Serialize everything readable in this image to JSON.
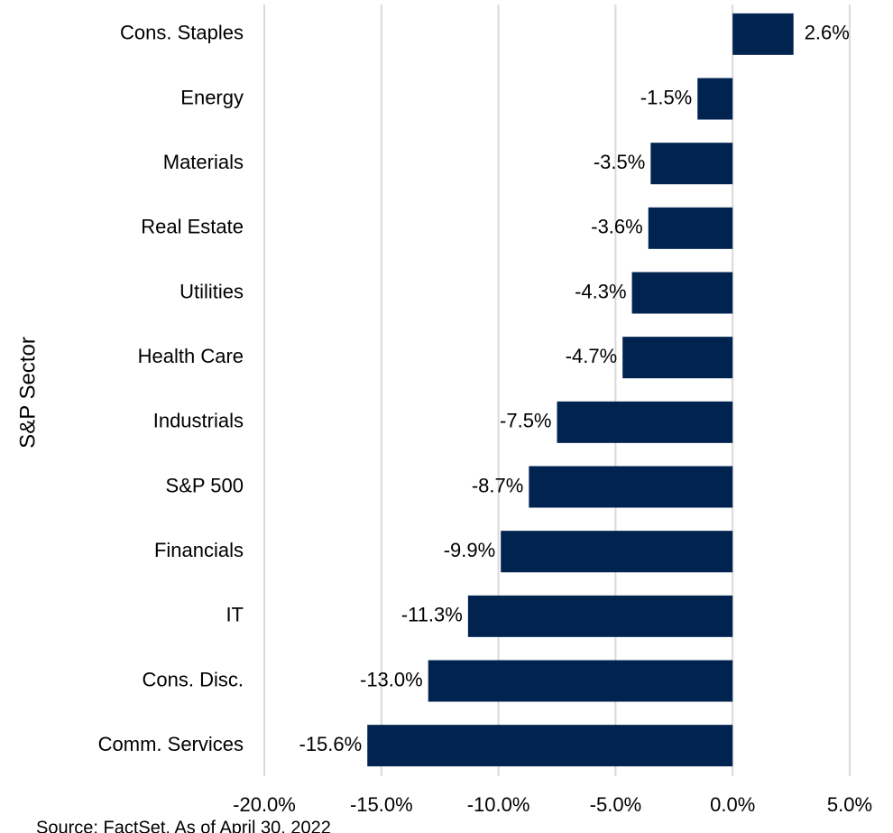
{
  "chart_data": {
    "type": "barh",
    "ylabel": "S&P Sector",
    "categories": [
      "Cons. Staples",
      "Energy",
      "Materials",
      "Real Estate",
      "Utilities",
      "Health Care",
      "Industrials",
      "S&P 500",
      "Financials",
      "IT",
      "Cons. Disc.",
      "Comm. Services"
    ],
    "values": [
      2.6,
      -1.5,
      -3.5,
      -3.6,
      -4.3,
      -4.7,
      -7.5,
      -8.7,
      -9.9,
      -11.3,
      -13.0,
      -15.6
    ],
    "value_labels": [
      "2.6%",
      "-1.5%",
      "-3.5%",
      "-3.6%",
      "-4.3%",
      "-4.7%",
      "-7.5%",
      "-8.7%",
      "-9.9%",
      "-11.3%",
      "-13.0%",
      "-15.6%"
    ],
    "color": "#002350",
    "xlim": [
      -20,
      5
    ],
    "xticks": [
      {
        "value": -20,
        "label": "-20.0%"
      },
      {
        "value": -15,
        "label": "-15.0%"
      },
      {
        "value": -10,
        "label": "-10.0%"
      },
      {
        "value": -5,
        "label": "-5.0%"
      },
      {
        "value": 0,
        "label": "0.0%"
      },
      {
        "value": 5,
        "label": "5.0%"
      }
    ],
    "grid": true,
    "source": "Source: FactSet. As of April 30, 2022"
  }
}
